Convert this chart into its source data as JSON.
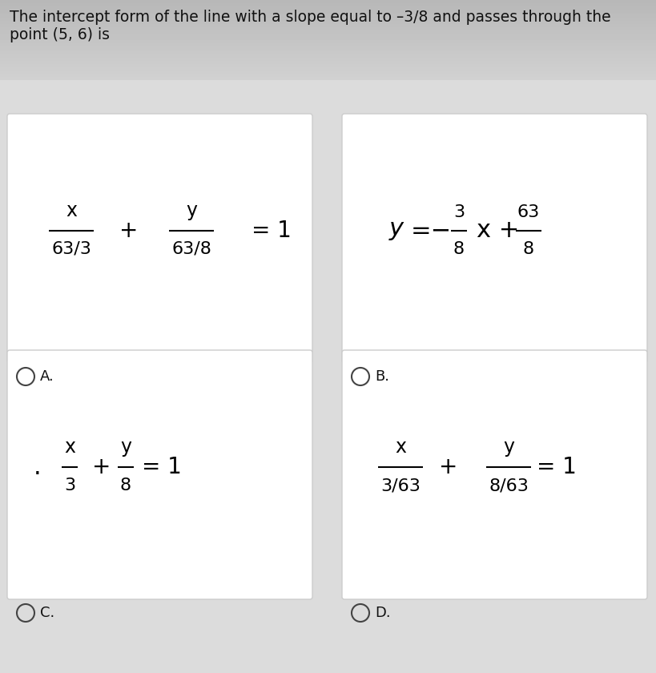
{
  "title_line1": "The intercept form of the line with a slope equal to –3/8 and passes through the",
  "title_line2": "point (5, 6) is",
  "title_fontsize": 13.5,
  "bg_color_top": "#c8c8c8",
  "bg_color_mid": "#d8d8d8",
  "bg_color_bot": "#e8e8e8",
  "box_color": "#ffffff",
  "box_border": "#cccccc",
  "text_color": "#111111",
  "option_A_label": "A.",
  "option_B_label": "B.",
  "option_C_label": "C.",
  "option_D_label": "D.",
  "fig_width": 8.2,
  "fig_height": 8.4,
  "title_bg": "#c0c0c8"
}
